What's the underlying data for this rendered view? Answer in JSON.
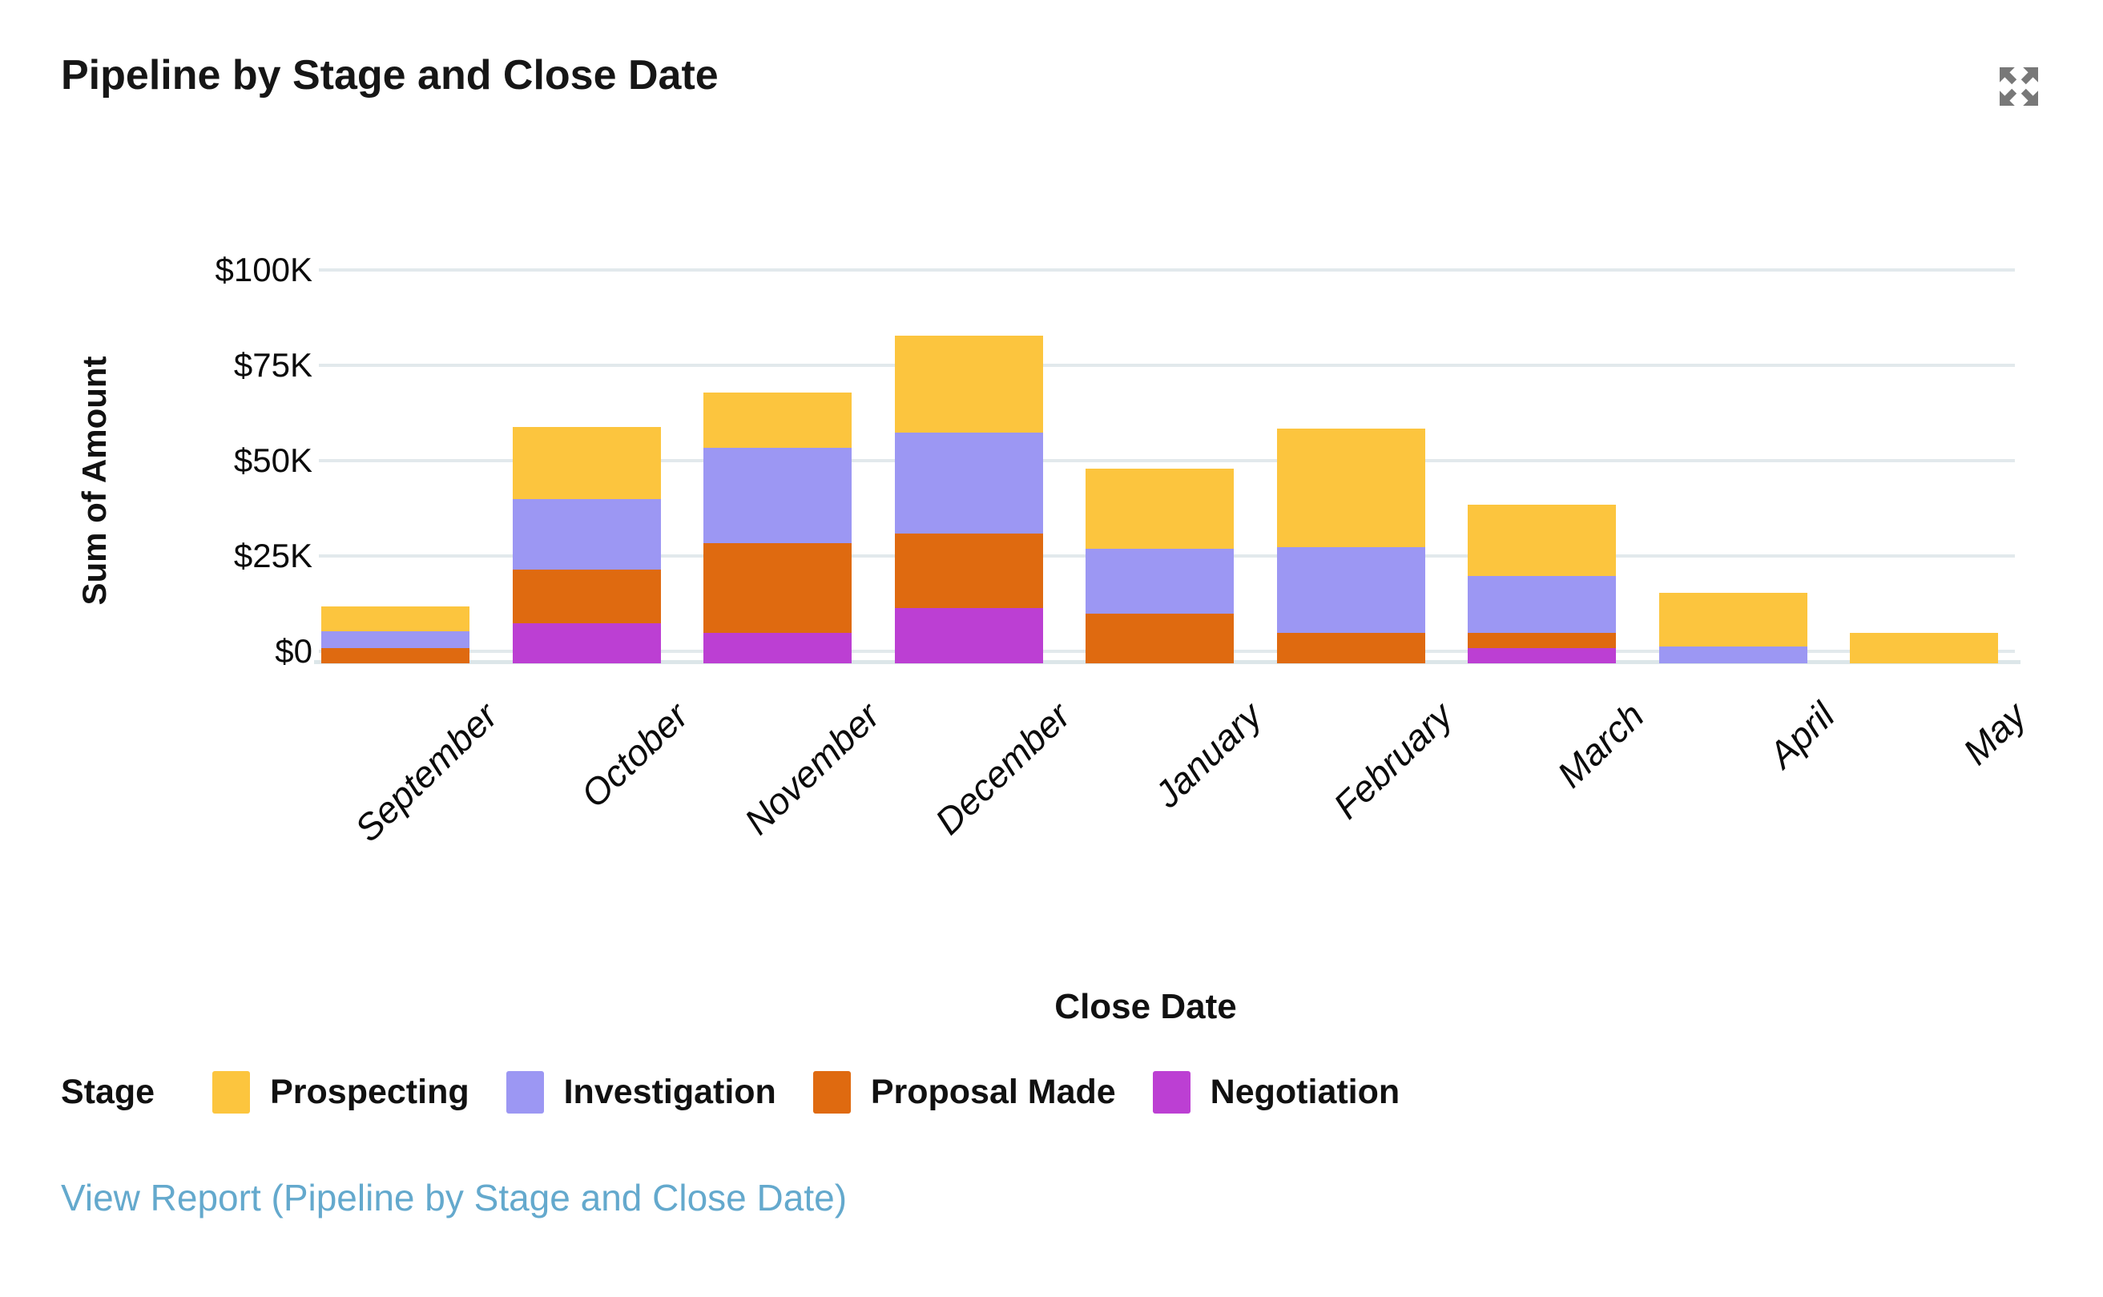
{
  "header": {
    "title": "Pipeline by Stage and Close Date",
    "expand_icon": "expand-arrows-icon"
  },
  "chart_data": {
    "type": "bar",
    "stacked": true,
    "title": "Pipeline by Stage and Close Date",
    "xlabel": "Close Date",
    "ylabel": "Sum of Amount",
    "categories": [
      "September",
      "October",
      "November",
      "December",
      "January",
      "February",
      "March",
      "April",
      "May"
    ],
    "series": [
      {
        "name": "Prospecting",
        "color": "#FCC53E",
        "values": [
          6500,
          19000,
          14500,
          25500,
          21000,
          31000,
          18500,
          14000,
          8000
        ]
      },
      {
        "name": "Investigation",
        "color": "#9C97F3",
        "values": [
          4500,
          18500,
          25000,
          26500,
          17000,
          22500,
          15000,
          4500,
          0
        ]
      },
      {
        "name": "Proposal Made",
        "color": "#DF6A10",
        "values": [
          4000,
          14000,
          23500,
          19500,
          13000,
          8000,
          4000,
          0,
          0
        ]
      },
      {
        "name": "Negotiation",
        "color": "#BC3FD3",
        "values": [
          0,
          10500,
          8000,
          14500,
          0,
          0,
          4000,
          0,
          0
        ]
      }
    ],
    "totals": [
      15000,
      62000,
      71000,
      86000,
      51000,
      61500,
      41500,
      18500,
      8000
    ],
    "y_ticks": [
      {
        "label": "$100K",
        "value": 100000
      },
      {
        "label": "$75K",
        "value": 75000
      },
      {
        "label": "$50K",
        "value": 50000
      },
      {
        "label": "$25K",
        "value": 25000
      },
      {
        "label": "$0",
        "value": 0
      }
    ],
    "ylim": [
      0,
      100000
    ],
    "grid": true,
    "gridline_color": "#E2E9EC",
    "legend_title": "Stage",
    "legend_position": "bottom",
    "tick_label_style": "italic"
  },
  "footer": {
    "view_report_link": "View Report (Pipeline by Stage and Close Date)"
  }
}
